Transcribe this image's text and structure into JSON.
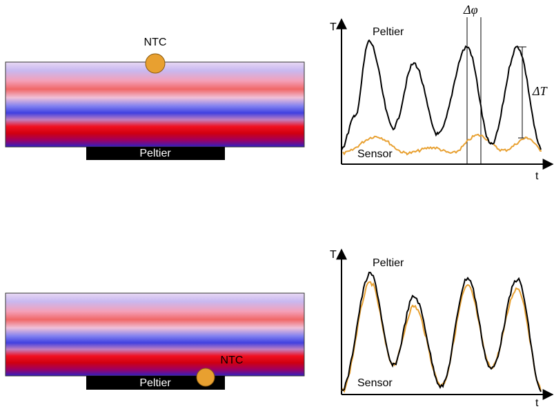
{
  "panels": [
    {
      "slab": {
        "sensor_label": "NTC",
        "heater_label": "Peltier"
      },
      "plot": {
        "y_axis_label": "T",
        "x_axis_label": "t",
        "curve_labels": [
          "Peltier",
          "Sensor"
        ],
        "annotations": [
          "Δφ",
          "ΔT"
        ]
      }
    },
    {
      "slab": {
        "sensor_label": "NTC",
        "heater_label": "Peltier"
      },
      "plot": {
        "y_axis_label": "T",
        "x_axis_label": "t",
        "curve_labels": [
          "Peltier",
          "Sensor"
        ]
      }
    }
  ]
}
